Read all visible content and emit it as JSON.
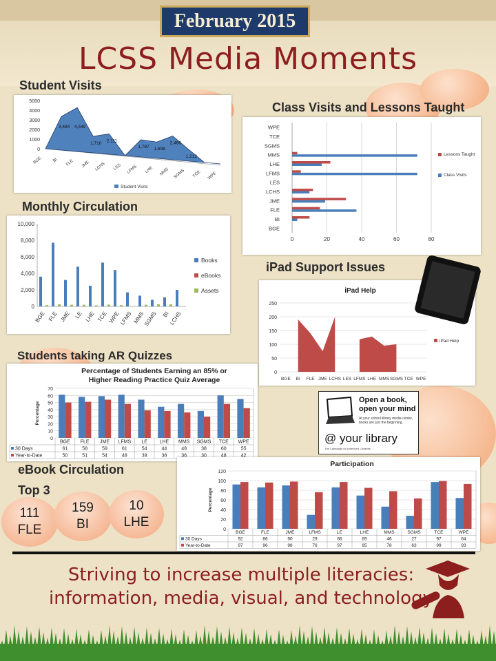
{
  "header": {
    "date": "February 2015",
    "title": "LCSS Media Moments"
  },
  "sections": {
    "student_visits": "Student Visits",
    "class_visits": "Class Visits and Lessons Taught",
    "monthly_circulation": "Monthly Circulation",
    "ipad_support": "iPad Support Issues",
    "ar_quizzes": "Students taking AR Quizzes",
    "ebook_circulation": "eBook Circulation",
    "top3": "Top 3"
  },
  "ebook_top3": [
    {
      "count": "111",
      "school": "FLE"
    },
    {
      "count": "159",
      "school": "BI"
    },
    {
      "count": "10",
      "school": "LHE"
    }
  ],
  "ad": {
    "headline_1": "Open a book,",
    "headline_2": "open your mind",
    "small": "At your school library media center, books are just the beginning.",
    "brand": "@ your library",
    "tagline": "The Campaign for America's Libraries"
  },
  "footer": {
    "slogan_1": "Striving to increase multiple literacies:",
    "slogan_2": "information, media, visual, and technology"
  },
  "colors": {
    "blue": "#4a7ebb",
    "red": "#be4b48",
    "green": "#9bbb59",
    "area_blue": "#4f81bd",
    "title_red": "#8c1e1e"
  },
  "chart_data": [
    {
      "id": "student_visits",
      "type": "area",
      "categories": [
        "BGE",
        "BI",
        "FLE",
        "JME",
        "LCHS",
        "LES",
        "LFMS",
        "LHE",
        "MMS",
        "SGMS",
        "TCE",
        "WPE"
      ],
      "series": [
        {
          "name": "Student Visits",
          "values": [
            0,
            3484,
            4549,
            1710,
            2111,
            0,
            1787,
            1698,
            2466,
            1212,
            0,
            0
          ]
        }
      ],
      "data_labels": [
        "",
        "3,484",
        "4,549",
        "1,710",
        "2,111",
        "",
        "1,787",
        "1,698",
        "2,466",
        "1,212",
        "",
        ""
      ],
      "y_ticks": [
        "0",
        "500",
        "1000",
        "1500",
        "2000",
        "2500",
        "3000",
        "3500",
        "4000",
        "4500",
        "5000"
      ],
      "ylim": [
        0,
        5000
      ],
      "legend": "bottom"
    },
    {
      "id": "class_visits",
      "type": "bar",
      "orientation": "horizontal",
      "categories": [
        "WPE",
        "TCE",
        "SGMS",
        "MMS",
        "LHE",
        "LFMS",
        "LES",
        "LCHS",
        "JME",
        "FLE",
        "BI",
        "BGE"
      ],
      "series": [
        {
          "name": "Lessons Taught",
          "values": [
            0,
            0,
            0,
            3,
            22,
            5,
            0,
            12,
            31,
            16,
            10,
            0
          ]
        },
        {
          "name": "Class Visits",
          "values": [
            0,
            0,
            0,
            72,
            17,
            72,
            0,
            10,
            19,
            37,
            3,
            0
          ]
        }
      ],
      "x_ticks": [
        "0",
        "20",
        "40",
        "60",
        "80"
      ],
      "xlim": [
        0,
        80
      ],
      "legend": "right"
    },
    {
      "id": "monthly_circulation",
      "type": "bar",
      "categories": [
        "BGE",
        "FLE",
        "JME",
        "LE",
        "LHE",
        "TCE",
        "WPE",
        "LFMS",
        "MMS",
        "SGMS",
        "BI",
        "LCHS"
      ],
      "series": [
        {
          "name": "Books",
          "values": [
            3600,
            7700,
            3200,
            4800,
            2500,
            5300,
            4400,
            1700,
            1300,
            800,
            1100,
            2000
          ]
        },
        {
          "name": "eBooks",
          "values": [
            0,
            0,
            0,
            0,
            0,
            0,
            0,
            0,
            0,
            0,
            0,
            0
          ]
        },
        {
          "name": "Assets",
          "values": [
            150,
            250,
            200,
            200,
            120,
            220,
            150,
            50,
            200,
            250,
            250,
            0
          ]
        }
      ],
      "y_ticks": [
        "0",
        "2,000",
        "4,000",
        "6,000",
        "8,000",
        "10,000"
      ],
      "ylim": [
        0,
        10000
      ],
      "legend": "right"
    },
    {
      "id": "ipad_help",
      "type": "area",
      "title": "iPad Help",
      "categories": [
        "BGE",
        "BI",
        "FLE",
        "JME",
        "LCHS",
        "LES",
        "LFMS",
        "LHE",
        "MMS",
        "SGMS",
        "TCE",
        "WPE"
      ],
      "series": [
        {
          "name": "iPad Help",
          "values": [
            null,
            190,
            140,
            75,
            200,
            null,
            118,
            128,
            95,
            100,
            null,
            null
          ]
        }
      ],
      "y_ticks": [
        "0",
        "50",
        "100",
        "150",
        "200",
        "250"
      ],
      "ylim": [
        0,
        250
      ],
      "legend": "right"
    },
    {
      "id": "ar_quizzes",
      "type": "bar",
      "title": "Percentage of Students Earning an 85% or Higher Reading Practice Quiz Average",
      "ylabel": "Percentage",
      "categories": [
        "BGE",
        "FLE",
        "JME",
        "LFMS",
        "LE",
        "LHE",
        "MMS",
        "SGMS",
        "TCE",
        "WPE"
      ],
      "series": [
        {
          "name": "30 Days",
          "values": [
            61,
            58,
            59,
            61,
            54,
            44,
            48,
            38,
            60,
            55
          ]
        },
        {
          "name": "Year-to-Date",
          "values": [
            50,
            51,
            54,
            48,
            39,
            38,
            36,
            30,
            48,
            42
          ]
        }
      ],
      "y_ticks": [
        "0",
        "10",
        "20",
        "30",
        "40",
        "50",
        "60",
        "70"
      ],
      "ylim": [
        0,
        70
      ],
      "legend": "data-table"
    },
    {
      "id": "participation",
      "type": "bar",
      "title": "Participation",
      "ylabel": "Percentage",
      "categories": [
        "BGE",
        "FLE",
        "JME",
        "LFMS",
        "LE",
        "LHE",
        "MMS",
        "SGMS",
        "TCE",
        "WPE"
      ],
      "series": [
        {
          "name": "30 Days",
          "values": [
            92,
            86,
            90,
            29,
            86,
            69,
            46,
            27,
            97,
            64
          ]
        },
        {
          "name": "Year-to-Date",
          "values": [
            97,
            96,
            98,
            76,
            97,
            85,
            78,
            63,
            99,
            93
          ]
        }
      ],
      "y_ticks": [
        "0",
        "20",
        "40",
        "60",
        "80",
        "100",
        "120"
      ],
      "ylim": [
        0,
        120
      ],
      "legend": "data-table"
    }
  ]
}
